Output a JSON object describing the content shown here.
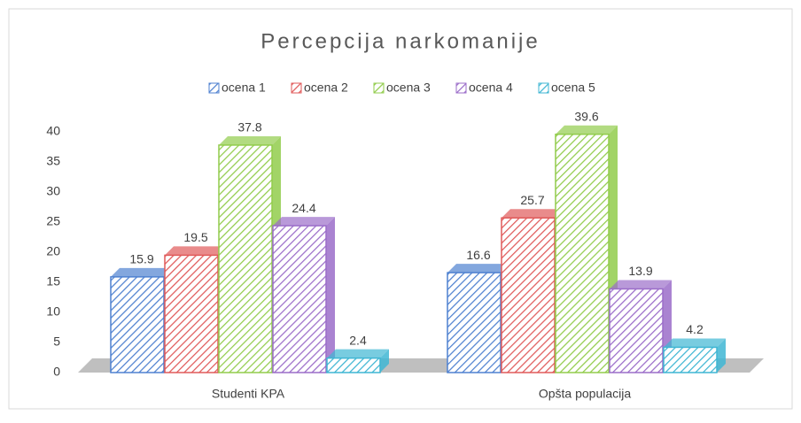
{
  "chart_data": {
    "type": "bar3d",
    "title": "Percepcija narkomanije",
    "categories": [
      "Studenti KPA",
      "Opšta populacija"
    ],
    "series": [
      {
        "name": "ocena 1",
        "color": "#4f81d0",
        "values": [
          15.9,
          16.6
        ]
      },
      {
        "name": "ocena 2",
        "color": "#e05a5a",
        "values": [
          19.5,
          25.7
        ]
      },
      {
        "name": "ocena 3",
        "color": "#92cc4c",
        "values": [
          37.8,
          39.6
        ]
      },
      {
        "name": "ocena 4",
        "color": "#9b6dc9",
        "values": [
          24.4,
          13.9
        ]
      },
      {
        "name": "ocena 5",
        "color": "#3fb6d3",
        "values": [
          2.4,
          4.2
        ]
      }
    ],
    "ylim": [
      0,
      40
    ],
    "yticks": [
      0,
      5,
      10,
      15,
      20,
      25,
      30,
      35,
      40
    ],
    "grid": false,
    "legend": "top"
  }
}
